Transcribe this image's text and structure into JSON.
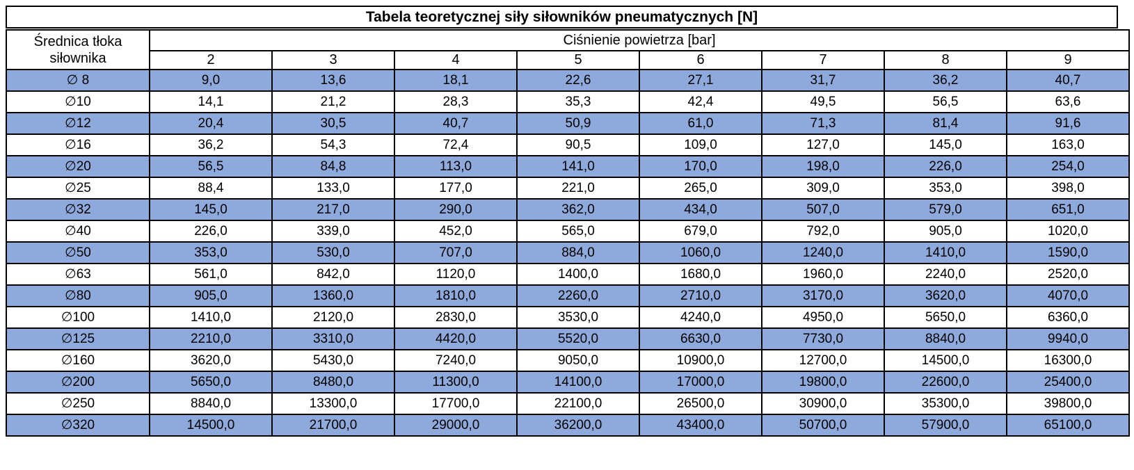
{
  "chart_data": {
    "type": "table",
    "title": "Tabela teoretycznej siły siłowników pneumatycznych [N]",
    "row_header_label": "Średnica tłoka siłownika",
    "column_group_label": "Ciśnienie powietrza [bar]",
    "pressure_columns": [
      "2",
      "3",
      "4",
      "5",
      "6",
      "7",
      "8",
      "9"
    ],
    "rows": [
      {
        "diameter": "∅ 8",
        "values": [
          "9,0",
          "13,6",
          "18,1",
          "22,6",
          "27,1",
          "31,7",
          "36,2",
          "40,7"
        ]
      },
      {
        "diameter": "∅10",
        "values": [
          "14,1",
          "21,2",
          "28,3",
          "35,3",
          "42,4",
          "49,5",
          "56,5",
          "63,6"
        ]
      },
      {
        "diameter": "∅12",
        "values": [
          "20,4",
          "30,5",
          "40,7",
          "50,9",
          "61,0",
          "71,3",
          "81,4",
          "91,6"
        ]
      },
      {
        "diameter": "∅16",
        "values": [
          "36,2",
          "54,3",
          "72,4",
          "90,5",
          "109,0",
          "127,0",
          "145,0",
          "163,0"
        ]
      },
      {
        "diameter": "∅20",
        "values": [
          "56,5",
          "84,8",
          "113,0",
          "141,0",
          "170,0",
          "198,0",
          "226,0",
          "254,0"
        ]
      },
      {
        "diameter": "∅25",
        "values": [
          "88,4",
          "133,0",
          "177,0",
          "221,0",
          "265,0",
          "309,0",
          "353,0",
          "398,0"
        ]
      },
      {
        "diameter": "∅32",
        "values": [
          "145,0",
          "217,0",
          "290,0",
          "362,0",
          "434,0",
          "507,0",
          "579,0",
          "651,0"
        ]
      },
      {
        "diameter": "∅40",
        "values": [
          "226,0",
          "339,0",
          "452,0",
          "565,0",
          "679,0",
          "792,0",
          "905,0",
          "1020,0"
        ]
      },
      {
        "diameter": "∅50",
        "values": [
          "353,0",
          "530,0",
          "707,0",
          "884,0",
          "1060,0",
          "1240,0",
          "1410,0",
          "1590,0"
        ]
      },
      {
        "diameter": "∅63",
        "values": [
          "561,0",
          "842,0",
          "1120,0",
          "1400,0",
          "1680,0",
          "1960,0",
          "2240,0",
          "2520,0"
        ]
      },
      {
        "diameter": "∅80",
        "values": [
          "905,0",
          "1360,0",
          "1810,0",
          "2260,0",
          "2710,0",
          "3170,0",
          "3620,0",
          "4070,0"
        ]
      },
      {
        "diameter": "∅100",
        "values": [
          "1410,0",
          "2120,0",
          "2830,0",
          "3530,0",
          "4240,0",
          "4950,0",
          "5650,0",
          "6360,0"
        ]
      },
      {
        "diameter": "∅125",
        "values": [
          "2210,0",
          "3310,0",
          "4420,0",
          "5520,0",
          "6630,0",
          "7730,0",
          "8840,0",
          "9940,0"
        ]
      },
      {
        "diameter": "∅160",
        "values": [
          "3620,0",
          "5430,0",
          "7240,0",
          "9050,0",
          "10900,0",
          "12700,0",
          "14500,0",
          "16300,0"
        ]
      },
      {
        "diameter": "∅200",
        "values": [
          "5650,0",
          "8480,0",
          "11300,0",
          "14100,0",
          "17000,0",
          "19800,0",
          "22600,0",
          "25400,0"
        ]
      },
      {
        "diameter": "∅250",
        "values": [
          "8840,0",
          "13300,0",
          "17700,0",
          "22100,0",
          "26500,0",
          "30900,0",
          "35300,0",
          "39800,0"
        ]
      },
      {
        "diameter": "∅320",
        "values": [
          "14500,0",
          "21700,0",
          "29000,0",
          "36200,0",
          "43400,0",
          "50700,0",
          "57900,0",
          "65100,0"
        ]
      }
    ]
  },
  "colors": {
    "stripe_blue": "#8EA9DB",
    "row_white": "#FFFFFF",
    "border": "#000000",
    "text": "#000000"
  }
}
